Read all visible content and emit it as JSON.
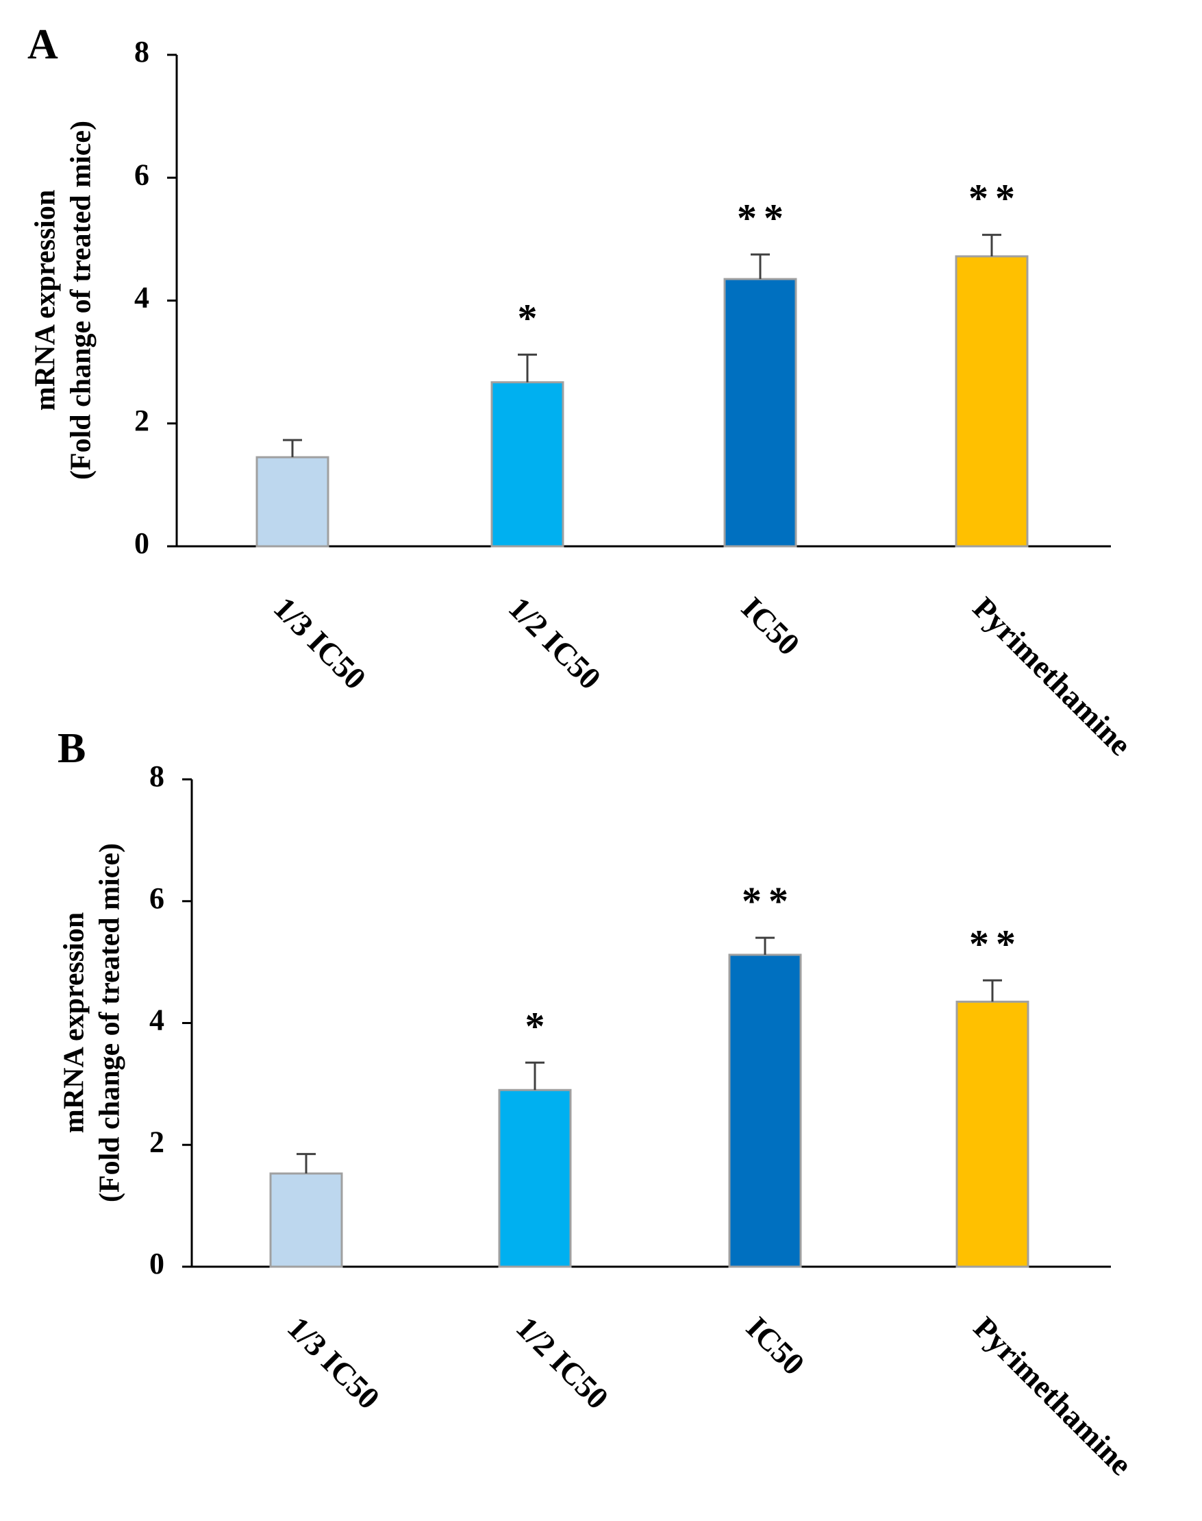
{
  "chart_data": [
    {
      "panel": "A",
      "type": "bar",
      "categories": [
        "1/3 IC50",
        "1/2 IC50",
        "IC50",
        "Pyrimethamine"
      ],
      "values": [
        1.45,
        2.67,
        4.35,
        4.72
      ],
      "errors": [
        0.28,
        0.45,
        0.4,
        0.35
      ],
      "significance": [
        "",
        "*",
        "**",
        "**"
      ],
      "colors": [
        "#bdd7ee",
        "#00b0f0",
        "#0070c0",
        "#ffc000"
      ],
      "ylabel_line1": "mRNA expression",
      "ylabel_line2": "(Fold change of treated mice)",
      "yticks": [
        0,
        2,
        4,
        6,
        8
      ],
      "ylim": [
        0,
        8
      ]
    },
    {
      "panel": "B",
      "type": "bar",
      "categories": [
        "1/3 IC50",
        "1/2 IC50",
        "IC50",
        "Pyrimethamine"
      ],
      "values": [
        1.53,
        2.9,
        5.12,
        4.35
      ],
      "errors": [
        0.32,
        0.45,
        0.28,
        0.35
      ],
      "significance": [
        "",
        "*",
        "**",
        "**"
      ],
      "colors": [
        "#bdd7ee",
        "#00b0f0",
        "#0070c0",
        "#ffc000"
      ],
      "ylabel_line1": "mRNA expression",
      "ylabel_line2": "(Fold change of treated mice)",
      "yticks": [
        0,
        2,
        4,
        6,
        8
      ],
      "ylim": [
        0,
        8
      ]
    }
  ]
}
